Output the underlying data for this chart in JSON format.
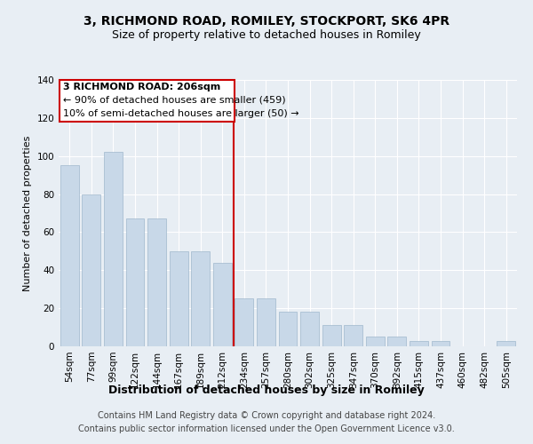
{
  "title": "3, RICHMOND ROAD, ROMILEY, STOCKPORT, SK6 4PR",
  "subtitle": "Size of property relative to detached houses in Romiley",
  "xlabel": "Distribution of detached houses by size in Romiley",
  "ylabel": "Number of detached properties",
  "categories": [
    "54sqm",
    "77sqm",
    "99sqm",
    "122sqm",
    "144sqm",
    "167sqm",
    "189sqm",
    "212sqm",
    "234sqm",
    "257sqm",
    "280sqm",
    "302sqm",
    "325sqm",
    "347sqm",
    "370sqm",
    "392sqm",
    "415sqm",
    "437sqm",
    "460sqm",
    "482sqm",
    "505sqm"
  ],
  "values": [
    95,
    80,
    102,
    67,
    67,
    50,
    50,
    44,
    25,
    25,
    18,
    18,
    11,
    11,
    5,
    5,
    3,
    3,
    0,
    0,
    3
  ],
  "bar_color": "#c8d8e8",
  "bar_edge_color": "#a0b8cc",
  "background_color": "#e8eef4",
  "grid_color": "#ffffff",
  "annotation_box_color": "#ffffff",
  "annotation_box_edge": "#cc0000",
  "vline_color": "#cc0000",
  "ylim": [
    0,
    140
  ],
  "yticks": [
    0,
    20,
    40,
    60,
    80,
    100,
    120,
    140
  ],
  "annotation_title": "3 RICHMOND ROAD: 206sqm",
  "annotation_line1": "← 90% of detached houses are smaller (459)",
  "annotation_line2": "10% of semi-detached houses are larger (50) →",
  "footer": "Contains HM Land Registry data © Crown copyright and database right 2024.\nContains public sector information licensed under the Open Government Licence v3.0.",
  "title_fontsize": 10,
  "subtitle_fontsize": 9,
  "xlabel_fontsize": 9,
  "ylabel_fontsize": 8,
  "tick_fontsize": 7.5,
  "annotation_fontsize": 8,
  "footer_fontsize": 7
}
